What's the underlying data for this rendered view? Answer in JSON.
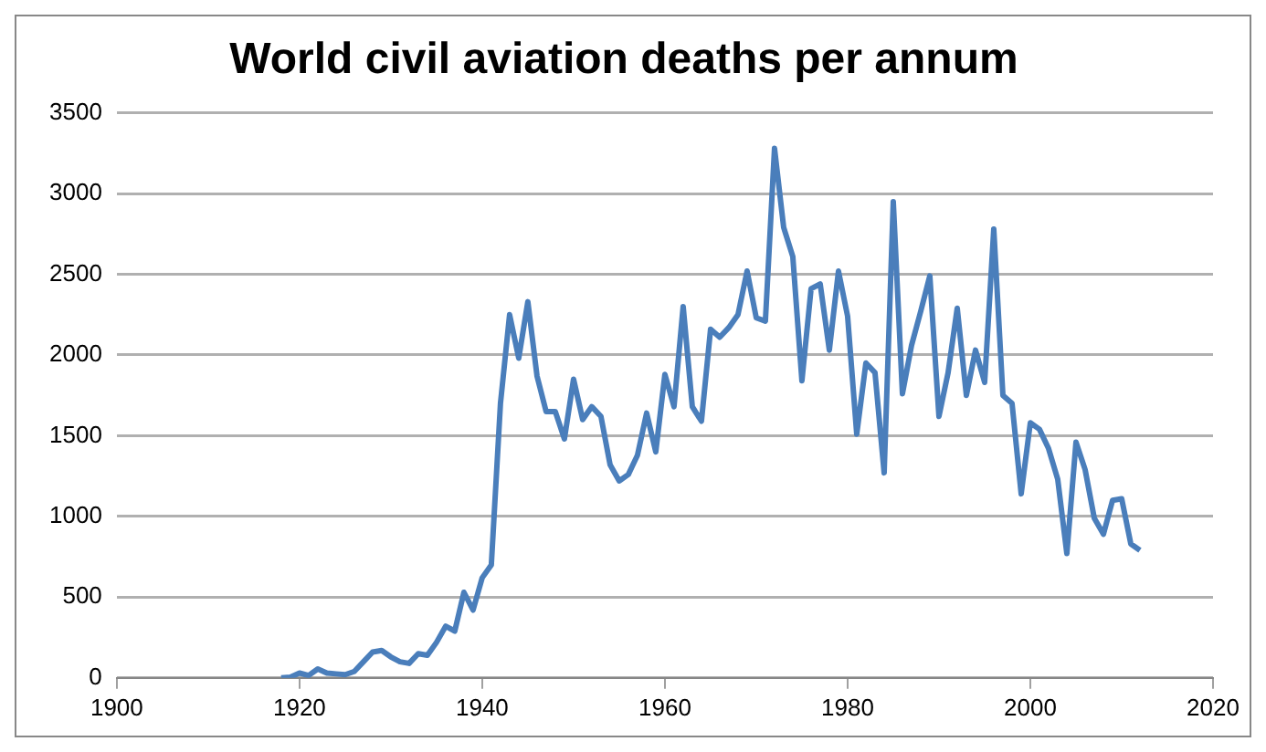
{
  "chart_data": {
    "type": "line",
    "title": "World civil aviation deaths per annum",
    "x": [
      1918,
      1919,
      1920,
      1921,
      1922,
      1923,
      1924,
      1925,
      1926,
      1927,
      1928,
      1929,
      1930,
      1931,
      1932,
      1933,
      1934,
      1935,
      1936,
      1937,
      1938,
      1939,
      1940,
      1941,
      1942,
      1943,
      1944,
      1945,
      1946,
      1947,
      1948,
      1949,
      1950,
      1951,
      1952,
      1953,
      1954,
      1955,
      1956,
      1957,
      1958,
      1959,
      1960,
      1961,
      1962,
      1963,
      1964,
      1965,
      1966,
      1967,
      1968,
      1969,
      1970,
      1971,
      1972,
      1973,
      1974,
      1975,
      1976,
      1977,
      1978,
      1979,
      1980,
      1981,
      1982,
      1983,
      1984,
      1985,
      1986,
      1987,
      1988,
      1989,
      1990,
      1991,
      1992,
      1993,
      1994,
      1995,
      1996,
      1997,
      1998,
      1999,
      2000,
      2001,
      2002,
      2003,
      2004,
      2005,
      2006,
      2007,
      2008,
      2009,
      2010,
      2011,
      2012
    ],
    "series": [
      {
        "color": "#4a7ebb",
        "values": [
          0,
          5,
          30,
          15,
          55,
          30,
          25,
          20,
          40,
          100,
          160,
          170,
          130,
          100,
          90,
          150,
          140,
          220,
          320,
          290,
          530,
          420,
          620,
          700,
          1700,
          2250,
          1980,
          2330,
          1870,
          1650,
          1650,
          1480,
          1850,
          1600,
          1680,
          1620,
          1320,
          1220,
          1260,
          1380,
          1640,
          1400,
          1880,
          1680,
          2300,
          1680,
          1590,
          2160,
          2110,
          2170,
          2250,
          2520,
          2230,
          2210,
          3280,
          2790,
          2610,
          1840,
          2410,
          2440,
          2030,
          2520,
          2240,
          1510,
          1950,
          1890,
          1270,
          2950,
          1760,
          2060,
          2270,
          2490,
          1620,
          1890,
          2290,
          1750,
          2030,
          1830,
          2780,
          1750,
          1700,
          1140,
          1580,
          1540,
          1420,
          1230,
          770,
          1460,
          1290,
          990,
          890,
          1100,
          1110,
          830,
          790
        ]
      }
    ],
    "xlim": [
      1900,
      2020
    ],
    "xticks": [
      1900,
      1920,
      1940,
      1960,
      1980,
      2000,
      2020
    ],
    "ylim": [
      0,
      3500
    ],
    "yticks": [
      0,
      500,
      1000,
      1500,
      2000,
      2500,
      3000,
      3500
    ],
    "grid": "y",
    "legend": false,
    "marker": "none",
    "line_style": "solid"
  }
}
